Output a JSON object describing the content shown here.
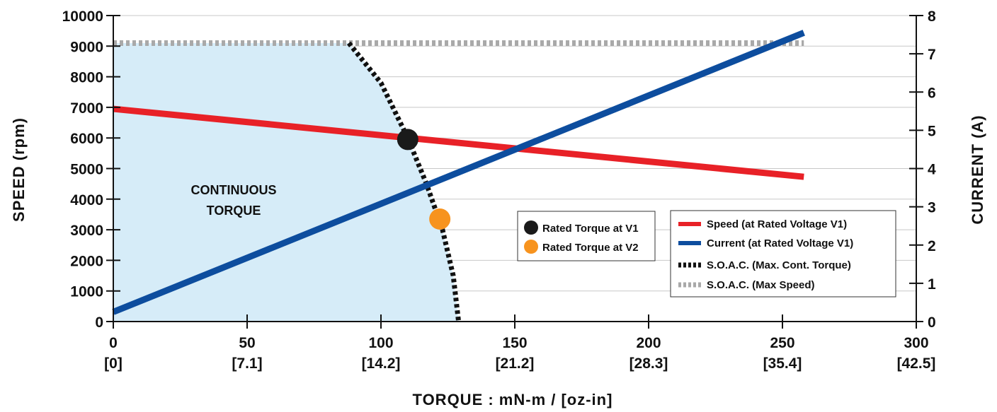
{
  "chart_data": {
    "type": "line",
    "title": "",
    "xlabel": "TORQUE : mN-m / [oz-in]",
    "ylabel": "SPEED (rpm)",
    "y2label": "CURRENT (A)",
    "xlim": [
      0,
      300
    ],
    "ylim": [
      0,
      10000
    ],
    "y2lim": [
      0,
      8
    ],
    "x_ticks": [
      0,
      50,
      100,
      150,
      200,
      250,
      300
    ],
    "x_ticks_secondary": [
      "[0]",
      "[7.1]",
      "[14.2]",
      "[21.2]",
      "[28.3]",
      "[35.4]",
      "[42.5]"
    ],
    "y_ticks": [
      0,
      1000,
      2000,
      3000,
      4000,
      5000,
      6000,
      7000,
      8000,
      9000,
      10000
    ],
    "y2_ticks": [
      0,
      1,
      2,
      3,
      4,
      5,
      6,
      7,
      8
    ],
    "grid": true,
    "region_label_lines": [
      "CONTINUOUS",
      "TORQUE"
    ],
    "series": [
      {
        "name": "Speed (at Rated  Voltage V1)",
        "axis": "left",
        "color": "#e82127",
        "style": "solid",
        "x": [
          0,
          258
        ],
        "y": [
          6950,
          4730
        ]
      },
      {
        "name": "Current (at Rated Voltage V1)",
        "axis": "right",
        "color": "#0d4d9e",
        "style": "solid",
        "x": [
          0,
          258
        ],
        "y": [
          0.25,
          7.55
        ]
      },
      {
        "name": "S.O.A.C. (Max. Cont. Torque)",
        "axis": "left",
        "color": "#111111",
        "style": "dotted",
        "x": [
          88,
          100,
          110,
          117,
          123,
          127,
          129
        ],
        "y": [
          9100,
          7800,
          6000,
          4500,
          3000,
          1500,
          0
        ]
      },
      {
        "name": "S.O.A.C. (Max Speed)",
        "axis": "left",
        "color": "#a9a9a9",
        "style": "dotted",
        "x": [
          0,
          258
        ],
        "y": [
          9100,
          9100
        ]
      }
    ],
    "points": [
      {
        "name": "Rated Torque at V1",
        "x": 110,
        "y": 5950,
        "color": "#1a1a1a"
      },
      {
        "name": "Rated Torque at V2",
        "x": 122,
        "y": 3350,
        "color": "#f7931e"
      }
    ],
    "legend_position": "bottom-right"
  }
}
